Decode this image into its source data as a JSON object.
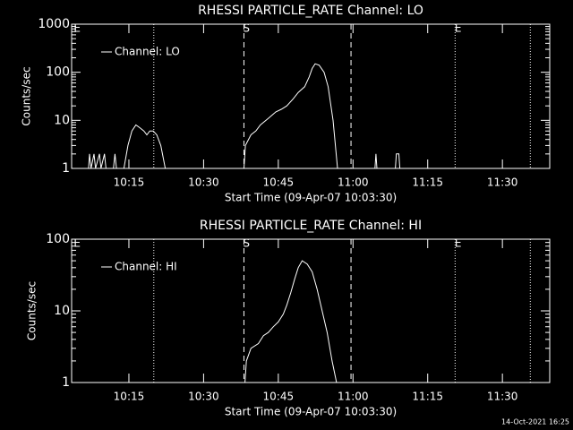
{
  "chart_data": [
    {
      "type": "line",
      "title": "RHESSI PARTICLE_RATE Channel: LO",
      "ylabel": "Counts/sec",
      "xlabel": "Start Time (09-Apr-07 10:03:30)",
      "log_y": true,
      "legend": "upper left",
      "xlim": [
        3.5,
        99.5
      ],
      "xticks": [
        {
          "value": 15,
          "label": "10:15"
        },
        {
          "value": 30,
          "label": "10:30"
        },
        {
          "value": 45,
          "label": "10:45"
        },
        {
          "value": 60,
          "label": "11:00"
        },
        {
          "value": 75,
          "label": "11:15"
        },
        {
          "value": 90,
          "label": "11:30"
        }
      ],
      "ylim": [
        1,
        1000
      ],
      "yticks": [
        1,
        10,
        100,
        1000
      ],
      "x": [
        4,
        6.9,
        7.1,
        7.4,
        8.0,
        8.3,
        9.1,
        9.4,
        10.1,
        10.4,
        11.9,
        12.2,
        12.5,
        14,
        14.8,
        15.6,
        16.4,
        17.2,
        18,
        18.6,
        19.2,
        19.9,
        20.6,
        21.4,
        22.3,
        38.1,
        38.4,
        39.5,
        40.5,
        41.4,
        43,
        44.5,
        45.6,
        46.7,
        48,
        49,
        50.3,
        51.2,
        51.8,
        52.4,
        53.2,
        54.2,
        55,
        56,
        56.9,
        64.4,
        64.6,
        64.8,
        68.5,
        68.7,
        69.2,
        69.4,
        99.5
      ],
      "series": [
        {
          "name": "Channel: LO",
          "color": "#ffffff",
          "values": [
            1,
            1,
            2,
            1,
            2,
            1,
            2,
            1,
            2,
            1,
            1,
            2,
            1,
            1,
            3,
            6,
            8,
            7,
            6,
            5,
            6,
            6,
            5,
            3,
            1,
            1,
            3,
            5,
            6,
            8,
            11,
            15,
            17,
            20,
            28,
            38,
            50,
            80,
            120,
            150,
            140,
            100,
            50,
            10,
            1,
            1,
            2,
            1,
            1,
            2,
            2,
            1,
            1
          ]
        }
      ],
      "vlines": [
        {
          "x": 20,
          "style": "dotted"
        },
        {
          "x": 38.1,
          "style": "dashed"
        },
        {
          "x": 59.6,
          "style": "dashed"
        },
        {
          "x": 80.5,
          "style": "dotted"
        },
        {
          "x": 95.6,
          "style": "dotted"
        }
      ],
      "annotations": [
        {
          "text": "E",
          "x": 4.6
        },
        {
          "text": "S",
          "x": 38.6
        },
        {
          "text": "E",
          "x": 81.1
        }
      ]
    },
    {
      "type": "line",
      "title": "RHESSI PARTICLE_RATE Channel: HI",
      "ylabel": "Counts/sec",
      "xlabel": "Start Time (09-Apr-07 10:03:30)",
      "log_y": true,
      "legend": "upper left",
      "xlim": [
        3.5,
        99.5
      ],
      "xticks": [
        {
          "value": 15,
          "label": "10:15"
        },
        {
          "value": 30,
          "label": "10:30"
        },
        {
          "value": 45,
          "label": "10:45"
        },
        {
          "value": 60,
          "label": "11:00"
        },
        {
          "value": 75,
          "label": "11:15"
        },
        {
          "value": 90,
          "label": "11:30"
        }
      ],
      "ylim": [
        1,
        100
      ],
      "yticks": [
        1,
        10,
        100
      ],
      "x": [
        38.3,
        38.6,
        39.5,
        41,
        42,
        43,
        44,
        45,
        46,
        46.7,
        47.5,
        48.3,
        49,
        49.8,
        50.8,
        51.8,
        52.8,
        53.8,
        54.8,
        55.8,
        56.7
      ],
      "series": [
        {
          "name": "Channel: HI",
          "color": "#ffffff",
          "values": [
            1,
            2,
            3,
            3.5,
            4.5,
            5,
            6,
            7,
            9,
            12,
            18,
            28,
            40,
            50,
            45,
            35,
            20,
            10,
            5,
            2,
            1
          ]
        }
      ],
      "vlines": [
        {
          "x": 20,
          "style": "dotted"
        },
        {
          "x": 38.1,
          "style": "dashed"
        },
        {
          "x": 59.6,
          "style": "dashed"
        },
        {
          "x": 80.5,
          "style": "dotted"
        },
        {
          "x": 95.6,
          "style": "dotted"
        }
      ],
      "annotations": [
        {
          "text": "E",
          "x": 4.6
        },
        {
          "text": "S",
          "x": 38.6
        },
        {
          "text": "E",
          "x": 81.1
        }
      ]
    }
  ],
  "footer": "14-Oct-2021 16:25"
}
